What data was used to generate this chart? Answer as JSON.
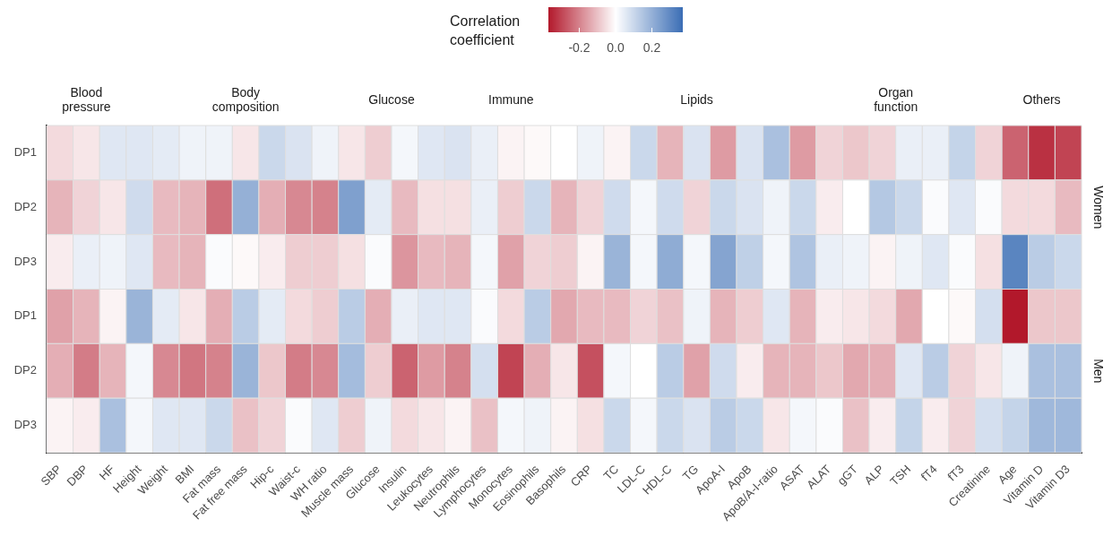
{
  "chart_data": {
    "type": "heatmap",
    "categories": [
      "SBP",
      "DBP",
      "HF",
      "Height",
      "Weight",
      "BMI",
      "Fat mass",
      "Fat free mass",
      "Hip-c",
      "Waist-c",
      "WH ratio",
      "Muscle mass",
      "Glucose",
      "Insulin",
      "Leukocytes",
      "Neutrophils",
      "Lymphocytes",
      "Monocytes",
      "Eosinophils",
      "Basophils",
      "CRP",
      "TC",
      "LDL-C",
      "HDL-C",
      "TG",
      "ApoA-I",
      "ApoB",
      "ApoB/A-I-ratio",
      "ASAT",
      "ALAT",
      "gGT",
      "ALP",
      "TSH",
      "fT4",
      "fT3",
      "Creatinine",
      "Age",
      "Vitamin D",
      "Vitamin D3"
    ],
    "y_categories": [
      "DP1",
      "DP2",
      "DP3",
      "DP1",
      "DP2",
      "DP3"
    ],
    "y2_categories": [
      null,
      "Women",
      null,
      null,
      "Men",
      null
    ],
    "cells": [
      [
        -0.06,
        -0.04,
        0.06,
        0.06,
        0.05,
        0.03,
        0.03,
        -0.04,
        0.1,
        0.07,
        0.03,
        -0.04,
        -0.08,
        0.02,
        0.06,
        0.07,
        0.04,
        -0.02,
        -0.01,
        0,
        0.03,
        -0.02,
        0.1,
        -0.12,
        0.07,
        -0.16,
        0.07,
        0.16,
        -0.16,
        -0.07,
        -0.09,
        -0.07,
        0.04,
        0.04,
        0.11,
        -0.07,
        -0.25,
        -0.33,
        -0.3
      ],
      [
        -0.12,
        -0.07,
        -0.04,
        0.09,
        -0.11,
        -0.12,
        -0.23,
        0.2,
        -0.13,
        -0.19,
        -0.2,
        0.24,
        0.05,
        -0.11,
        -0.05,
        -0.05,
        0.04,
        -0.08,
        0.1,
        -0.12,
        -0.07,
        0.09,
        0.02,
        0.09,
        -0.07,
        0.1,
        0.07,
        0.03,
        0.1,
        -0.03,
        0,
        0.14,
        0.1,
        0.01,
        0.06,
        0.01,
        -0.06,
        -0.06,
        -0.11
      ],
      [
        -0.03,
        0.04,
        0.03,
        0.06,
        -0.11,
        -0.12,
        0.01,
        -0.01,
        -0.03,
        -0.08,
        -0.08,
        -0.05,
        0.01,
        -0.17,
        -0.11,
        -0.12,
        0.02,
        -0.15,
        -0.07,
        -0.08,
        -0.02,
        0.19,
        0.02,
        0.21,
        0.02,
        0.23,
        0.12,
        0.02,
        0.15,
        0.04,
        0.03,
        -0.02,
        0.03,
        0.06,
        0.01,
        -0.05,
        0.31,
        0.13,
        0.1
      ],
      [
        -0.15,
        -0.12,
        -0.02,
        0.19,
        0.05,
        -0.04,
        -0.13,
        0.13,
        0.05,
        -0.06,
        -0.08,
        0.13,
        -0.13,
        0.04,
        0.06,
        0.06,
        0.01,
        -0.06,
        0.13,
        -0.14,
        -0.11,
        -0.11,
        -0.07,
        -0.1,
        0.03,
        -0.12,
        -0.08,
        0.06,
        -0.12,
        -0.03,
        -0.04,
        -0.06,
        -0.14,
        0,
        -0.01,
        0.08,
        -0.37,
        -0.09,
        -0.09
      ],
      [
        -0.13,
        -0.21,
        -0.12,
        0.02,
        -0.19,
        -0.22,
        -0.2,
        0.19,
        -0.09,
        -0.21,
        -0.19,
        0.17,
        -0.08,
        -0.25,
        -0.16,
        -0.2,
        0.08,
        -0.3,
        -0.13,
        -0.04,
        -0.28,
        0.02,
        0,
        0.13,
        -0.15,
        0.09,
        -0.03,
        -0.12,
        -0.12,
        -0.09,
        -0.14,
        -0.13,
        0.06,
        0.13,
        -0.07,
        -0.04,
        0.03,
        0.16,
        0.16
      ],
      [
        -0.02,
        -0.03,
        0.16,
        0.02,
        0.06,
        0.06,
        0.1,
        -0.1,
        -0.07,
        0.01,
        0.06,
        -0.08,
        0.03,
        -0.06,
        -0.04,
        -0.02,
        -0.1,
        0.02,
        0.03,
        -0.02,
        -0.05,
        0.1,
        0.02,
        0.1,
        0.07,
        0.13,
        0.1,
        -0.04,
        0.02,
        0.01,
        -0.1,
        -0.03,
        0.11,
        -0.03,
        -0.07,
        0.08,
        0.11,
        0.18,
        0.18
      ]
    ],
    "clim": [
      -0.37,
      0.37
    ],
    "cticks": [
      -0.2,
      {
        "value": 0,
        "label": "0.0"
      },
      0.2
    ],
    "clabel": "Correlation coefficient",
    "annotations": [
      "Blood pressure",
      "Body composition",
      "Glucose",
      "Immune",
      "Lipids",
      "Organ function",
      "Others"
    ]
  }
}
